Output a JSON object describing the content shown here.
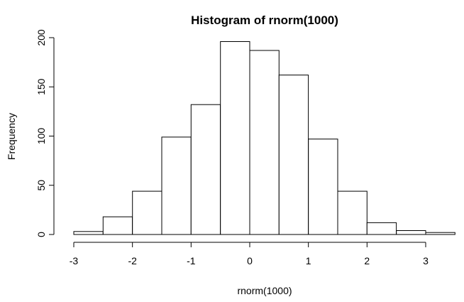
{
  "chart_data": {
    "type": "bar",
    "title": "Histogram of rnorm(1000)",
    "xlabel": "rnorm(1000)",
    "ylabel": "Frequency",
    "bin_edges": [
      -3,
      -2.5,
      -2,
      -1.5,
      -1,
      -0.5,
      0,
      0.5,
      1,
      1.5,
      2,
      2.5,
      3,
      3.5
    ],
    "values": [
      3,
      18,
      44,
      99,
      132,
      196,
      187,
      162,
      97,
      44,
      12,
      4,
      2
    ],
    "xlim": [
      -3,
      3.5
    ],
    "ylim": [
      0,
      200
    ],
    "x_ticks": [
      -3,
      -2,
      -1,
      0,
      1,
      2,
      3
    ],
    "y_ticks": [
      0,
      50,
      100,
      150,
      200
    ],
    "grid": false,
    "legend": "none"
  }
}
